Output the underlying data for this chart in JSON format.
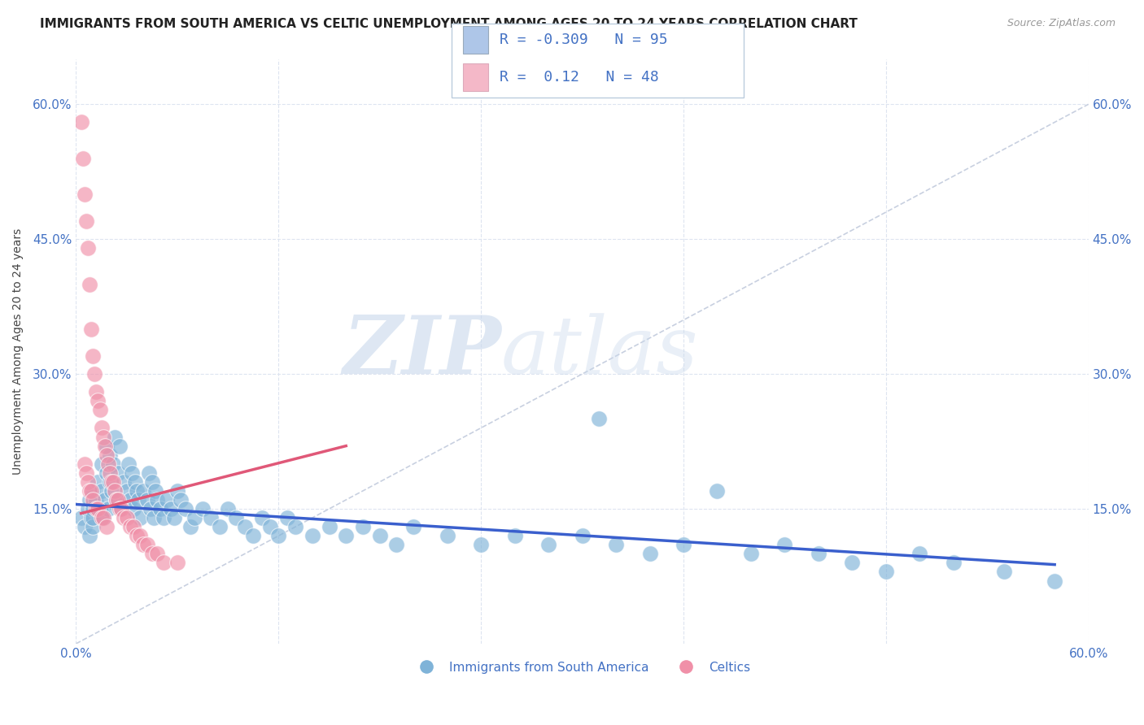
{
  "title": "IMMIGRANTS FROM SOUTH AMERICA VS CELTIC UNEMPLOYMENT AMONG AGES 20 TO 24 YEARS CORRELATION CHART",
  "source": "Source: ZipAtlas.com",
  "ylabel": "Unemployment Among Ages 20 to 24 years",
  "xlim": [
    0.0,
    0.6
  ],
  "ylim": [
    0.0,
    0.65
  ],
  "yticks": [
    0.0,
    0.15,
    0.3,
    0.45,
    0.6
  ],
  "xtick_labels": [
    "0.0%",
    "60.0%"
  ],
  "ytick_labels": [
    "",
    "15.0%",
    "30.0%",
    "45.0%",
    "60.0%"
  ],
  "blue_r": -0.309,
  "blue_n": 95,
  "pink_r": 0.12,
  "pink_n": 48,
  "blue_color": "#aec6e8",
  "pink_color": "#f4b8c8",
  "blue_dot_color": "#7fb3d8",
  "pink_dot_color": "#f090a8",
  "blue_line_color": "#3a5fcd",
  "pink_line_color": "#e05878",
  "diagonal_color": "#c8d0e0",
  "legend_r_color": "#4472c4",
  "title_color": "#222222",
  "ylabel_color": "#444444",
  "axis_label_color": "#4472c4",
  "watermark_zip": "ZIP",
  "watermark_atlas": "atlas",
  "background_color": "#ffffff",
  "grid_color": "#dde4f0",
  "title_fontsize": 11,
  "axis_fontsize": 11,
  "legend_fontsize": 13,
  "blue_scatter_x": [
    0.003,
    0.005,
    0.007,
    0.008,
    0.008,
    0.009,
    0.01,
    0.01,
    0.01,
    0.01,
    0.012,
    0.013,
    0.014,
    0.015,
    0.015,
    0.016,
    0.017,
    0.018,
    0.018,
    0.019,
    0.02,
    0.02,
    0.021,
    0.022,
    0.023,
    0.024,
    0.025,
    0.026,
    0.027,
    0.028,
    0.03,
    0.031,
    0.032,
    0.033,
    0.034,
    0.035,
    0.036,
    0.037,
    0.038,
    0.04,
    0.042,
    0.043,
    0.044,
    0.045,
    0.046,
    0.047,
    0.048,
    0.05,
    0.052,
    0.054,
    0.056,
    0.058,
    0.06,
    0.062,
    0.065,
    0.068,
    0.07,
    0.075,
    0.08,
    0.085,
    0.09,
    0.095,
    0.1,
    0.105,
    0.11,
    0.115,
    0.12,
    0.125,
    0.13,
    0.14,
    0.15,
    0.16,
    0.17,
    0.18,
    0.19,
    0.2,
    0.22,
    0.24,
    0.26,
    0.28,
    0.3,
    0.32,
    0.34,
    0.36,
    0.4,
    0.42,
    0.44,
    0.46,
    0.5,
    0.52,
    0.31,
    0.38,
    0.48,
    0.55,
    0.58
  ],
  "blue_scatter_y": [
    0.14,
    0.13,
    0.15,
    0.12,
    0.16,
    0.14,
    0.13,
    0.15,
    0.17,
    0.14,
    0.16,
    0.18,
    0.15,
    0.17,
    0.2,
    0.14,
    0.16,
    0.19,
    0.22,
    0.15,
    0.18,
    0.21,
    0.17,
    0.2,
    0.23,
    0.16,
    0.19,
    0.22,
    0.15,
    0.18,
    0.17,
    0.2,
    0.16,
    0.19,
    0.15,
    0.18,
    0.17,
    0.16,
    0.14,
    0.17,
    0.16,
    0.19,
    0.15,
    0.18,
    0.14,
    0.17,
    0.16,
    0.15,
    0.14,
    0.16,
    0.15,
    0.14,
    0.17,
    0.16,
    0.15,
    0.13,
    0.14,
    0.15,
    0.14,
    0.13,
    0.15,
    0.14,
    0.13,
    0.12,
    0.14,
    0.13,
    0.12,
    0.14,
    0.13,
    0.12,
    0.13,
    0.12,
    0.13,
    0.12,
    0.11,
    0.13,
    0.12,
    0.11,
    0.12,
    0.11,
    0.12,
    0.11,
    0.1,
    0.11,
    0.1,
    0.11,
    0.1,
    0.09,
    0.1,
    0.09,
    0.25,
    0.17,
    0.08,
    0.08,
    0.07
  ],
  "pink_scatter_x": [
    0.003,
    0.004,
    0.005,
    0.005,
    0.006,
    0.006,
    0.007,
    0.007,
    0.008,
    0.008,
    0.009,
    0.009,
    0.01,
    0.01,
    0.011,
    0.012,
    0.012,
    0.013,
    0.013,
    0.014,
    0.015,
    0.015,
    0.016,
    0.016,
    0.017,
    0.018,
    0.018,
    0.019,
    0.02,
    0.021,
    0.022,
    0.023,
    0.024,
    0.025,
    0.026,
    0.027,
    0.028,
    0.03,
    0.032,
    0.034,
    0.036,
    0.038,
    0.04,
    0.042,
    0.045,
    0.048,
    0.052,
    0.06
  ],
  "pink_scatter_y": [
    0.58,
    0.54,
    0.5,
    0.2,
    0.47,
    0.19,
    0.44,
    0.18,
    0.4,
    0.17,
    0.35,
    0.17,
    0.32,
    0.16,
    0.3,
    0.28,
    0.15,
    0.27,
    0.15,
    0.26,
    0.24,
    0.14,
    0.23,
    0.14,
    0.22,
    0.21,
    0.13,
    0.2,
    0.19,
    0.18,
    0.18,
    0.17,
    0.16,
    0.16,
    0.15,
    0.15,
    0.14,
    0.14,
    0.13,
    0.13,
    0.12,
    0.12,
    0.11,
    0.11,
    0.1,
    0.1,
    0.09,
    0.09
  ],
  "blue_line_x": [
    0.0,
    0.58
  ],
  "blue_line_y": [
    0.155,
    0.088
  ],
  "pink_line_x": [
    0.003,
    0.16
  ],
  "pink_line_y": [
    0.145,
    0.22
  ]
}
